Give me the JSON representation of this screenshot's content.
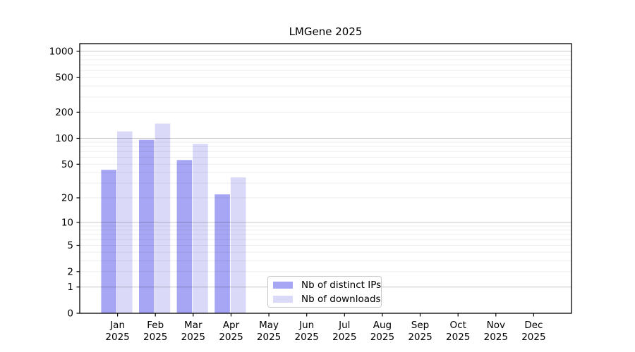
{
  "chart_data": {
    "type": "bar",
    "title": "LMGene 2025",
    "categories": [
      "Jan 2025",
      "Feb 2025",
      "Mar 2025",
      "Apr 2025",
      "May 2025",
      "Jun 2025",
      "Jul 2025",
      "Aug 2025",
      "Sep 2025",
      "Oct 2025",
      "Nov 2025",
      "Dec 2025"
    ],
    "series": [
      {
        "name": "Nb of distinct IPs",
        "color": "#a6a6f4",
        "values": [
          43,
          96,
          56,
          22,
          null,
          null,
          null,
          null,
          null,
          null,
          null,
          null
        ]
      },
      {
        "name": "Nb of downloads",
        "color": "#dadaf8",
        "values": [
          120,
          148,
          86,
          35,
          null,
          null,
          null,
          null,
          null,
          null,
          null,
          null
        ]
      }
    ],
    "xlabel": "",
    "ylabel": "",
    "yscale": "log10(1+x)",
    "yticks": [
      0,
      1,
      2,
      5,
      10,
      20,
      50,
      100,
      200,
      500,
      1000
    ],
    "ylim": [
      0,
      1000
    ],
    "grid": true,
    "legend_position": "bottom-center",
    "colors": {
      "axis": "#000000",
      "grid_minor": "rgba(0,0,0,0.07)",
      "grid_major": "rgba(0,0,0,0.22)",
      "background": "#ffffff",
      "legend_border": "#c8c8c8"
    }
  }
}
